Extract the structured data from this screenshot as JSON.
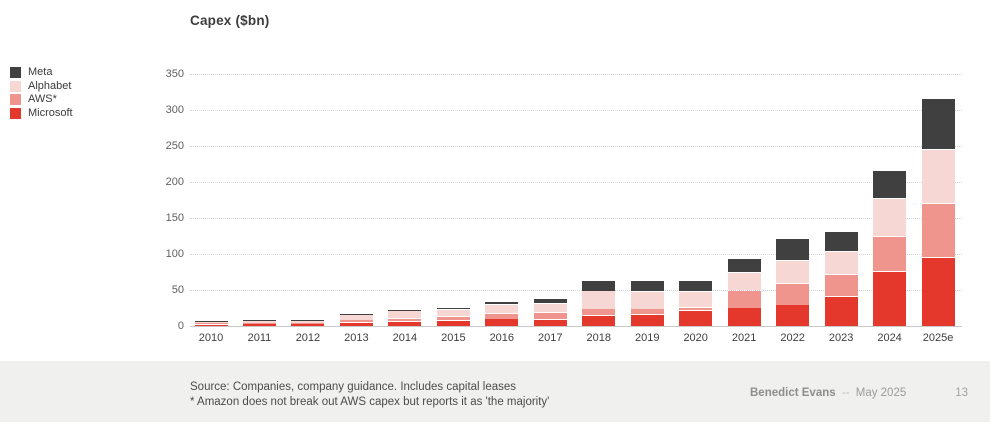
{
  "slide": {
    "title": "Capex ($bn)",
    "footer": {
      "source_line1": "Source: Companies, company guidance. Includes capital leases",
      "source_line2": "* Amazon does not break out AWS capex but reports it as 'the majority'",
      "author": "Benedict Evans",
      "separator": "--",
      "date": "May 2025",
      "page": "13"
    }
  },
  "chart_data": {
    "type": "bar",
    "stacked": true,
    "title": "Capex ($bn)",
    "categories": [
      "2010",
      "2011",
      "2012",
      "2013",
      "2014",
      "2015",
      "2016",
      "2017",
      "2018",
      "2019",
      "2020",
      "2021",
      "2022",
      "2023",
      "2024",
      "2025e"
    ],
    "series": [
      {
        "name": "Microsoft",
        "color": "#e4382c",
        "values": [
          1.9,
          2.4,
          2.3,
          4.3,
          5.5,
          6.7,
          9.1,
          8.7,
          13.5,
          15.0,
          20.5,
          24.5,
          28.5,
          40.0,
          75.0,
          95.0
        ]
      },
      {
        "name": "AWS*",
        "color": "#f0958e",
        "values": [
          0.8,
          1.0,
          1.4,
          3.6,
          4.3,
          6.0,
          8.0,
          10.0,
          9.6,
          8.0,
          5.0,
          24.0,
          30.0,
          31.0,
          49.0,
          75.0
        ]
      },
      {
        "name": "Alphabet",
        "color": "#f6d7d4",
        "values": [
          2.5,
          3.4,
          3.3,
          7.4,
          11.0,
          10.0,
          12.0,
          12.0,
          25.1,
          24.5,
          21.5,
          25.5,
          31.5,
          32.0,
          52.0,
          75.0
        ]
      },
      {
        "name": "Meta",
        "color": "#404040",
        "values": [
          0.3,
          0.6,
          1.2,
          1.4,
          1.8,
          2.5,
          4.5,
          6.7,
          13.9,
          15.5,
          15.0,
          19.0,
          31.0,
          28.0,
          39.0,
          70.0
        ]
      }
    ],
    "totals": [
      5.5,
      7.4,
      8.2,
      16.7,
      22.6,
      25.2,
      33.6,
      37.4,
      62.1,
      63.0,
      62.0,
      93.0,
      121.0,
      131.0,
      215.0,
      315.0
    ],
    "legend_order_top_to_bottom": [
      "Meta",
      "Alphabet",
      "AWS*",
      "Microsoft"
    ],
    "ylim": [
      0,
      350
    ],
    "yticks": [
      0,
      50,
      100,
      150,
      200,
      250,
      300,
      350
    ],
    "ylabel": "",
    "xlabel": "",
    "grid": "horizontal-dotted",
    "legend_position": "left"
  }
}
